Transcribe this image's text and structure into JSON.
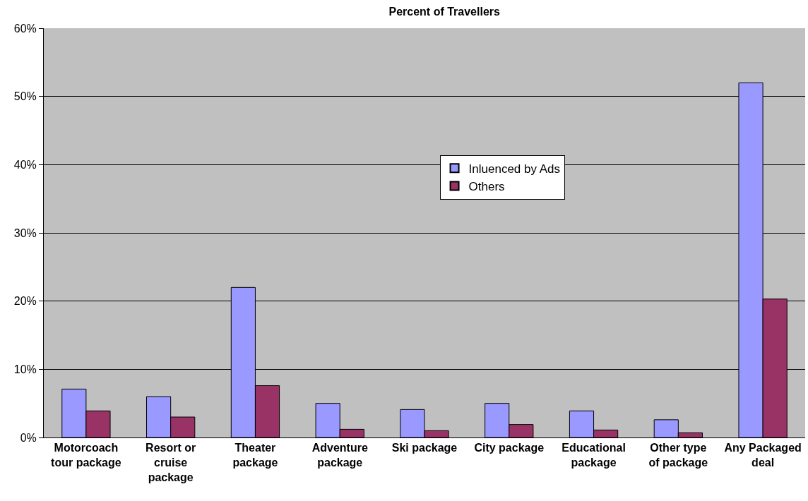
{
  "chart_data": {
    "type": "bar",
    "title": "Percent of Travellers",
    "categories": [
      "Motorcoach tour package",
      "Resort or cruise package",
      "Theater package",
      "Adventure package",
      "Ski package",
      "City package",
      "Educational package",
      "Other type of package",
      "Any Packaged deal"
    ],
    "series": [
      {
        "name": "Inluenced by Ads",
        "color": "#9999ff",
        "values": [
          7.1,
          6.0,
          22.0,
          5.0,
          4.1,
          5.0,
          3.9,
          2.6,
          52.0
        ]
      },
      {
        "name": "Others",
        "color": "#993366",
        "values": [
          3.9,
          3.0,
          7.6,
          1.2,
          1.0,
          1.9,
          1.1,
          0.7,
          20.3
        ]
      }
    ],
    "ylim": [
      0,
      60
    ],
    "yticks": [
      {
        "value": 0,
        "label": "0%"
      },
      {
        "value": 10,
        "label": "10%"
      },
      {
        "value": 20,
        "label": "20%"
      },
      {
        "value": 30,
        "label": "30%"
      },
      {
        "value": 40,
        "label": "40%"
      },
      {
        "value": 50,
        "label": "50%"
      },
      {
        "value": 60,
        "label": "60%"
      }
    ],
    "grid": "y",
    "legend": "top right"
  }
}
